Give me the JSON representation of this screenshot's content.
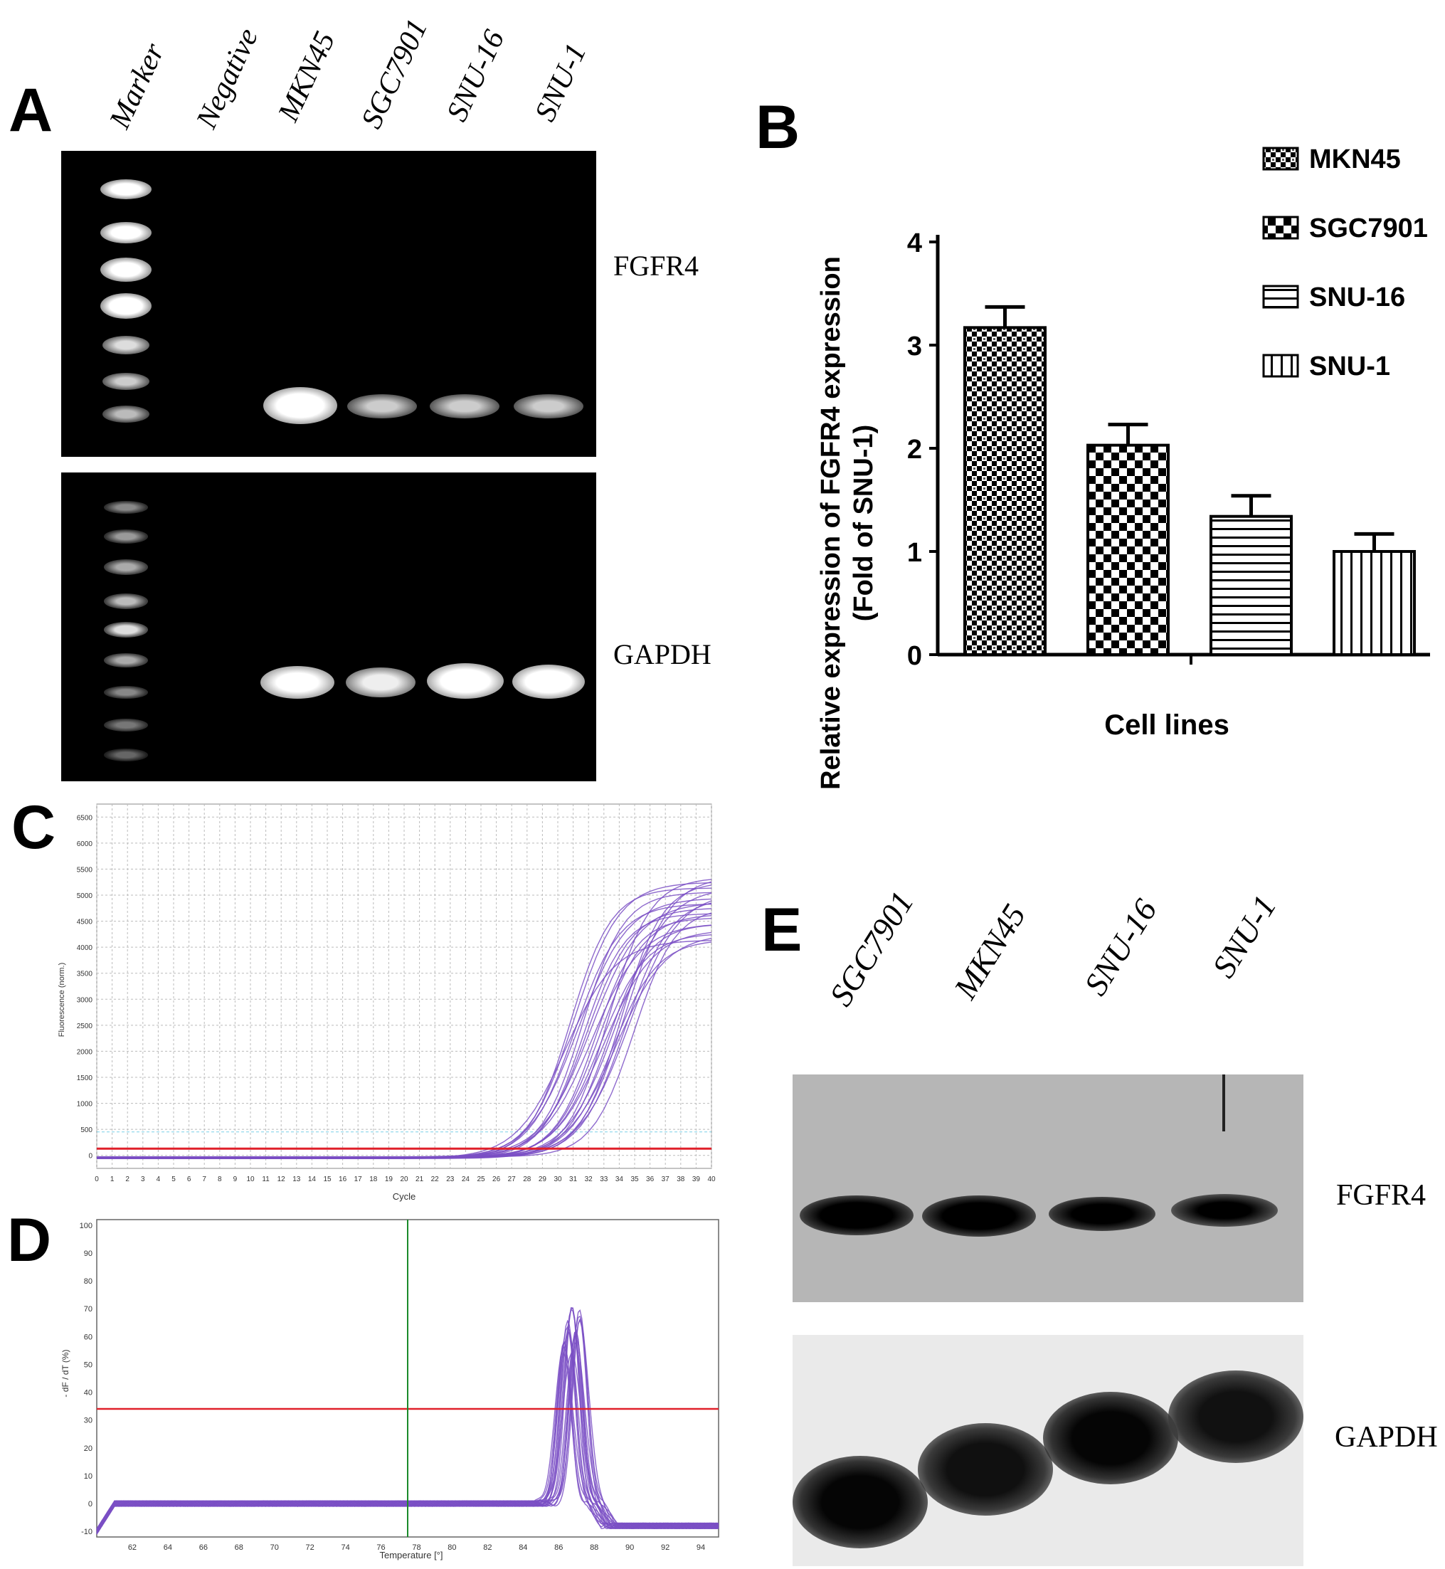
{
  "panels": {
    "a": "A",
    "b": "B",
    "c": "C",
    "d": "D",
    "e": "E"
  },
  "panel_a": {
    "lanes": [
      "Marker",
      "Negative",
      "MKN45",
      "SGC7901",
      "SNU-16",
      "SNU-1"
    ],
    "gels": [
      "FGFR4",
      "GAPDH"
    ]
  },
  "panel_e": {
    "lanes": [
      "SGC7901",
      "MKN45",
      "SNU-16",
      "SNU-1"
    ],
    "blots": [
      "FGFR4",
      "GAPDH"
    ]
  },
  "chart_data": [
    {
      "panel": "B",
      "type": "bar",
      "categories": [
        "MKN45",
        "SGC7901",
        "SNU-16",
        "SNU-1"
      ],
      "values": [
        3.17,
        2.03,
        1.34,
        1.0
      ],
      "errors": [
        0.2,
        0.2,
        0.2,
        0.17
      ],
      "xlabel": "Cell lines",
      "ylabel": "Relative expression of  FGFR4 expression",
      "ylabel2": "(Fold of SNU-1)",
      "ylim": [
        0,
        4
      ],
      "yticks": [
        "0",
        "1",
        "2",
        "3",
        "4"
      ],
      "legend": [
        "MKN45",
        "SGC7901",
        "SNU-16",
        "SNU-1"
      ],
      "legend_position": "top-right",
      "colors": {
        "fill_pattern": "#000000"
      }
    },
    {
      "panel": "C",
      "type": "line",
      "xlabel": "Cycle",
      "ylabel": "Fluorescence (norm.)",
      "xlim": [
        0,
        40
      ],
      "ylim": [
        -250,
        6750
      ],
      "xticks": [
        "0",
        "1",
        "2",
        "3",
        "4",
        "5",
        "6",
        "7",
        "8",
        "9",
        "10",
        "11",
        "12",
        "13",
        "14",
        "15",
        "16",
        "17",
        "18",
        "19",
        "20",
        "21",
        "22",
        "23",
        "24",
        "25",
        "26",
        "27",
        "28",
        "29",
        "30",
        "31",
        "32",
        "33",
        "34",
        "35",
        "36",
        "37",
        "38",
        "39",
        "40"
      ],
      "yticks": [
        "0",
        "500",
        "1000",
        "1500",
        "2000",
        "2500",
        "3000",
        "3500",
        "4000",
        "4500",
        "5000",
        "5500",
        "6000",
        "6500"
      ],
      "threshold": 130,
      "grid": true,
      "colors": {
        "curves": "#7a4fc4",
        "threshold": "#e0202a"
      }
    },
    {
      "panel": "D",
      "type": "line",
      "xlabel": "Temperature [°]",
      "ylabel": "- dF / dT (%)",
      "xlim": [
        60,
        95
      ],
      "ylim": [
        -12,
        102
      ],
      "xticks": [
        "62",
        "64",
        "66",
        "68",
        "70",
        "72",
        "74",
        "76",
        "78",
        "80",
        "82",
        "84",
        "86",
        "88",
        "90",
        "92",
        "94"
      ],
      "yticks": [
        "-10",
        "0",
        "10",
        "20",
        "30",
        "40",
        "50",
        "60",
        "70",
        "80",
        "90",
        "100"
      ],
      "threshold": 34,
      "marker_x": 77.5,
      "grid": false,
      "colors": {
        "curves": "#7a4fc4",
        "threshold": "#e0202a",
        "marker": "#1a8a2a"
      }
    }
  ]
}
